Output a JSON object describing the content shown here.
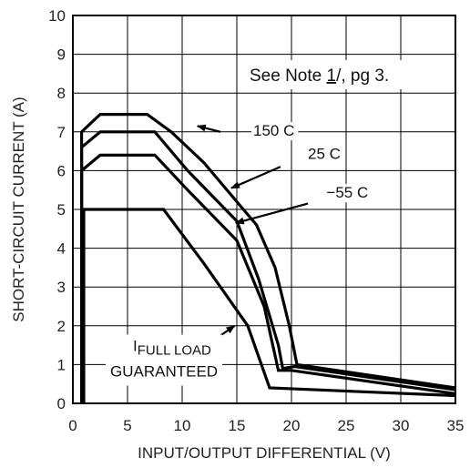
{
  "chart_data": {
    "type": "line",
    "xlabel": "INPUT/OUTPUT DIFFERENTIAL (V)",
    "ylabel": "SHORT-CIRCUIT CURRENT (A)",
    "xlim": [
      0,
      35
    ],
    "ylim": [
      0,
      10
    ],
    "xticks": [
      0,
      5,
      10,
      15,
      20,
      25,
      30,
      35
    ],
    "yticks": [
      0,
      1,
      2,
      3,
      4,
      5,
      6,
      7,
      8,
      9,
      10
    ],
    "grid": true,
    "note": {
      "prefix": "See Note ",
      "ref": "1",
      "suffix": "/, pg 3."
    },
    "series": [
      {
        "name": "150 C",
        "points": [
          [
            0.8,
            0
          ],
          [
            0.8,
            7.0
          ],
          [
            2.5,
            7.45
          ],
          [
            6.8,
            7.45
          ],
          [
            9.0,
            7.0
          ],
          [
            12.0,
            6.2
          ],
          [
            15.0,
            5.2
          ],
          [
            16.8,
            4.6
          ],
          [
            18.5,
            3.5
          ],
          [
            19.8,
            2.0
          ],
          [
            20.5,
            1.0
          ],
          [
            35,
            0.4
          ]
        ]
      },
      {
        "name": "25 C",
        "points": [
          [
            0.8,
            0
          ],
          [
            0.8,
            6.6
          ],
          [
            2.5,
            7.0
          ],
          [
            7.5,
            7.0
          ],
          [
            10.5,
            6.0
          ],
          [
            15.0,
            4.7
          ],
          [
            17.0,
            3.2
          ],
          [
            18.8,
            1.5
          ],
          [
            19.2,
            0.9
          ],
          [
            20.3,
            0.95
          ],
          [
            35,
            0.35
          ]
        ]
      },
      {
        "name": "−55 C",
        "points": [
          [
            0.8,
            0
          ],
          [
            0.8,
            6.0
          ],
          [
            2.5,
            6.4
          ],
          [
            7.5,
            6.4
          ],
          [
            10.5,
            5.5
          ],
          [
            15.0,
            4.2
          ],
          [
            17.5,
            2.5
          ],
          [
            18.8,
            0.85
          ],
          [
            20.0,
            0.85
          ],
          [
            35,
            0.25
          ]
        ]
      },
      {
        "name": "FULL LOAD GUARANTEED",
        "points": [
          [
            1.0,
            0
          ],
          [
            1.0,
            5.0
          ],
          [
            8.3,
            5.0
          ],
          [
            12.0,
            3.6
          ],
          [
            16.0,
            2.0
          ],
          [
            18.0,
            0.4
          ],
          [
            35,
            0.2
          ]
        ]
      }
    ],
    "annotations": [
      {
        "text": "150 C",
        "at": [
          16.5,
          6.9
        ],
        "arrow_from": [
          13.5,
          7.0
        ],
        "arrow_to": [
          11.4,
          7.15
        ]
      },
      {
        "text": "25 C",
        "at": [
          21.5,
          6.3
        ],
        "arrow_from": [
          19.0,
          6.1
        ],
        "arrow_to": [
          14.5,
          5.55
        ]
      },
      {
        "text": "−55 C",
        "at": [
          23.2,
          5.3
        ],
        "arrow_from": [
          21.5,
          5.15
        ],
        "arrow_to": [
          14.9,
          4.65
        ]
      },
      {
        "text_sub": "FULL LOAD",
        "text_main": "I",
        "text_line2": "GUARANTEED",
        "at": [
          5.5,
          1.35
        ],
        "arrow_from": [
          13.0,
          1.65
        ],
        "arrow_to": [
          14.8,
          2.0
        ]
      }
    ]
  }
}
